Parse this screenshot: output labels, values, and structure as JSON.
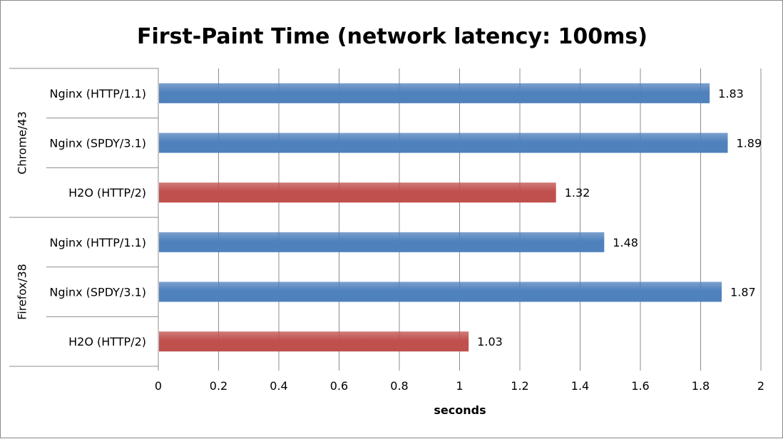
{
  "chart_data": {
    "type": "bar",
    "orientation": "horizontal",
    "title": "First-Paint Time (network latency: 100ms)",
    "xlabel": "seconds",
    "ylabel": "",
    "xlim": [
      0,
      2
    ],
    "x_ticks": [
      "0",
      "0.2",
      "0.4",
      "0.6",
      "0.8",
      "1",
      "1.2",
      "1.4",
      "1.6",
      "1.8",
      "2"
    ],
    "grid": "vertical",
    "groups": [
      {
        "name": "Chrome/43",
        "bars": [
          {
            "label": "Nginx (HTTP/1.1)",
            "value": 1.83,
            "value_label": "1.83",
            "color": "#4f81bd"
          },
          {
            "label": "Nginx (SPDY/3.1)",
            "value": 1.89,
            "value_label": "1.89",
            "color": "#4f81bd"
          },
          {
            "label": "H2O (HTTP/2)",
            "value": 1.32,
            "value_label": "1.32",
            "color": "#c0504d"
          }
        ]
      },
      {
        "name": "Firefox/38",
        "bars": [
          {
            "label": "Nginx (HTTP/1.1)",
            "value": 1.48,
            "value_label": "1.48",
            "color": "#4f81bd"
          },
          {
            "label": "Nginx (SPDY/3.1)",
            "value": 1.87,
            "value_label": "1.87",
            "color": "#4f81bd"
          },
          {
            "label": "H2O (HTTP/2)",
            "value": 1.03,
            "value_label": "1.03",
            "color": "#c0504d"
          }
        ]
      }
    ]
  }
}
